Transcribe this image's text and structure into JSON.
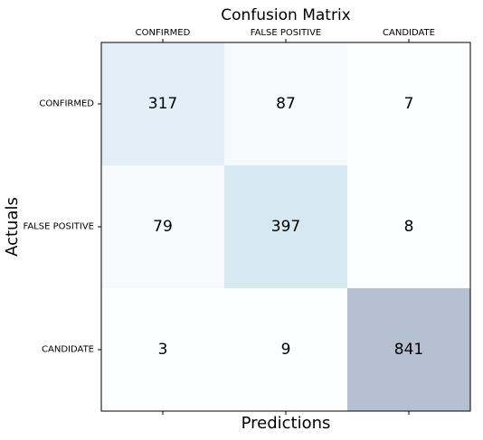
{
  "chart_data": {
    "type": "heatmap",
    "title": "Confusion Matrix",
    "xlabel": "Predictions",
    "ylabel": "Actuals",
    "x_categories": [
      "CONFIRMED",
      "FALSE POSITIVE",
      "CANDIDATE"
    ],
    "y_categories": [
      "CONFIRMED",
      "FALSE POSITIVE",
      "CANDIDATE"
    ],
    "values": [
      [
        317,
        87,
        7
      ],
      [
        79,
        397,
        8
      ],
      [
        3,
        9,
        841
      ]
    ],
    "colormap": "Blues",
    "cell_alpha": 0.3,
    "x_tick_position": "top",
    "grid": false,
    "legend": "none",
    "colors": {
      "low": "#f7fbff",
      "high": "#08306b",
      "text": "#000000"
    }
  }
}
